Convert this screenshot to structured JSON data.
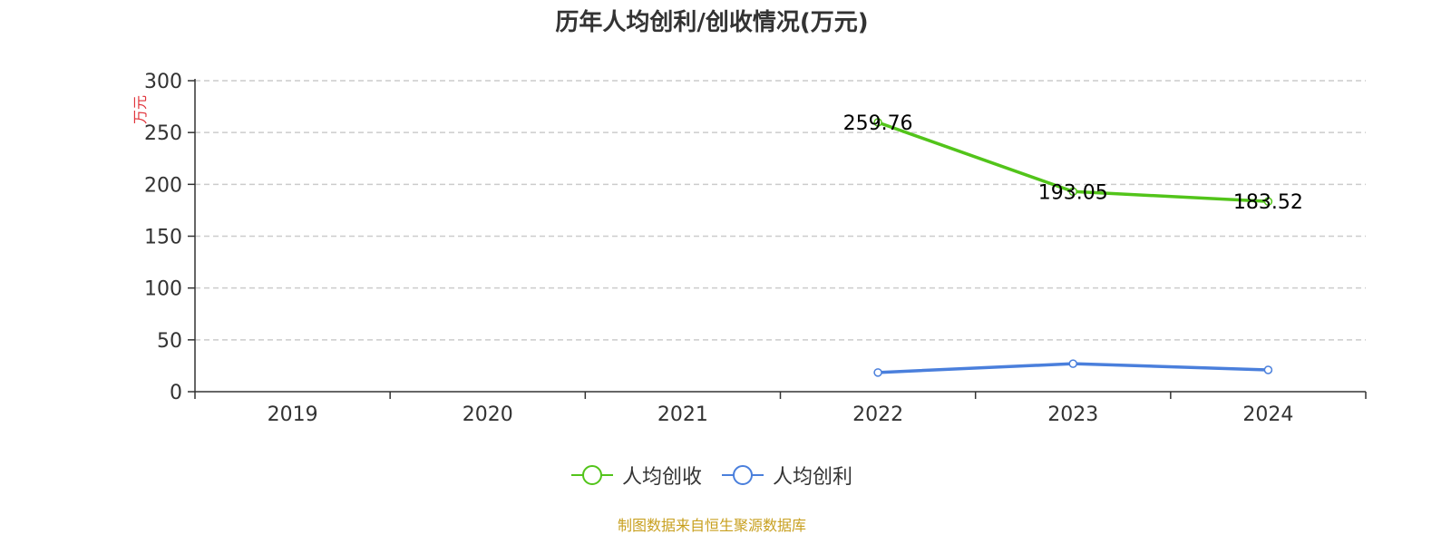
{
  "chart_data": {
    "type": "line",
    "title": "历年人均创利/创收情况(万元)",
    "ylabel": "万元",
    "xlabel": "",
    "categories": [
      "2019",
      "2020",
      "2021",
      "2022",
      "2023",
      "2024"
    ],
    "ylim": [
      0,
      300
    ],
    "yticks": [
      0,
      50,
      100,
      150,
      200,
      250,
      300
    ],
    "grid": true,
    "legend_position": "bottom",
    "series": [
      {
        "name": "人均创收",
        "color": "#52c41a",
        "values": [
          null,
          null,
          null,
          259.76,
          193.05,
          183.52
        ],
        "labels": [
          "",
          "",
          "",
          "259.76",
          "193.05",
          "183.52"
        ]
      },
      {
        "name": "人均创利",
        "color": "#4a7fdc",
        "values": [
          null,
          null,
          null,
          18.5,
          27.0,
          21.0
        ],
        "labels": [
          "",
          "",
          "",
          "",
          "",
          ""
        ]
      }
    ]
  },
  "source_text": "制图数据来自恒生聚源数据库",
  "colors": {
    "ylabel": "#e0333a",
    "source": "#c8a020",
    "axis": "#333333",
    "grid": "#cccccc",
    "text": "#333333"
  }
}
